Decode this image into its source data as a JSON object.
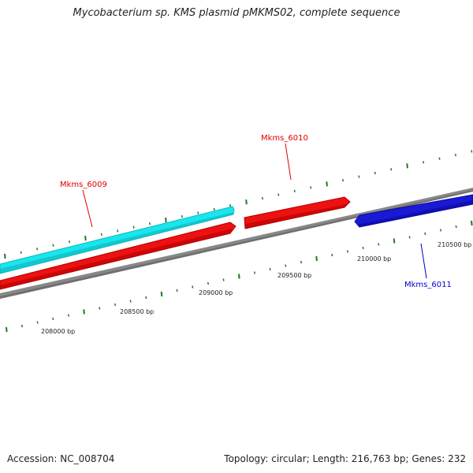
{
  "title": "Mycobacterium sp. KMS plasmid pMKMS02, complete sequence",
  "footer": {
    "accession": "Accession: NC_008704",
    "summary": "Topology: circular; Length: 216,763 bp; Genes: 232"
  },
  "colors": {
    "backbone": "#888888",
    "tick": "#1f7a1f",
    "gene_forward_cyan": "#19e6ee",
    "gene_red": "#ee1111",
    "gene_blue": "#1a1ad6",
    "label_red": "#dd0000",
    "label_blue": "#0000cc"
  },
  "ruler": {
    "labels": [
      "208000 bp",
      "208500 bp",
      "209000 bp",
      "209500 bp",
      "210000 bp",
      "210500 bp"
    ]
  },
  "genes": [
    {
      "name": "Mkms_6009",
      "color": "cyan"
    },
    {
      "name": "Mkms_6009",
      "color": "red"
    },
    {
      "name": "Mkms_6010",
      "color": "red"
    },
    {
      "name": "Mkms_6011",
      "color": "blue"
    }
  ],
  "labels": {
    "gene_6009": "Mkms_6009",
    "gene_6010": "Mkms_6010",
    "gene_6011": "Mkms_6011"
  }
}
